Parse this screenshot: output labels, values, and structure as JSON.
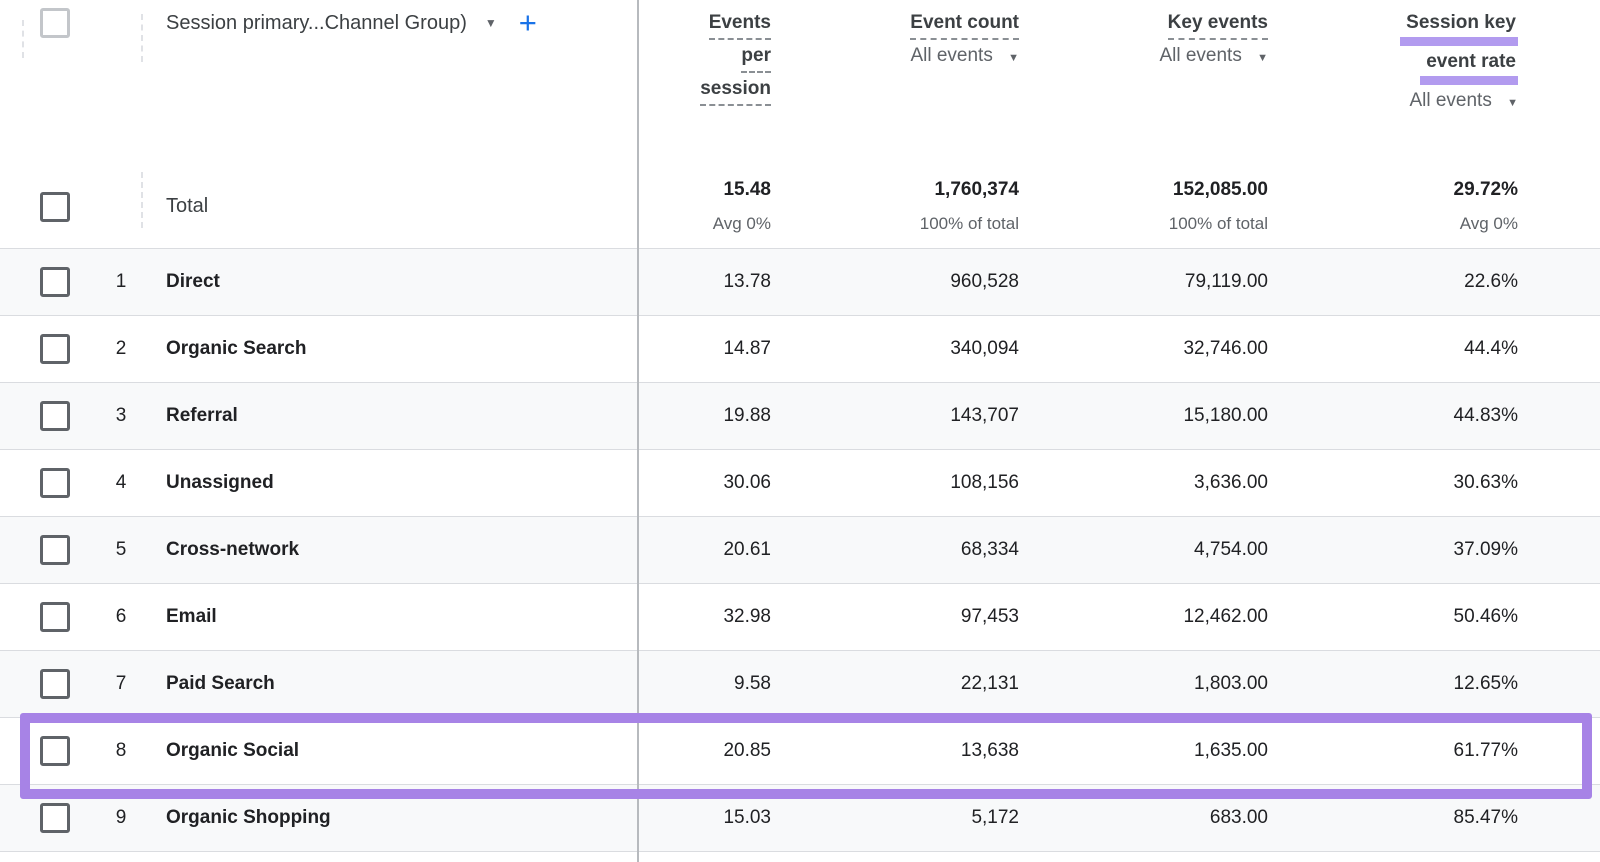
{
  "icons": {
    "dropdown_caret": "▼",
    "add": "+"
  },
  "colors": {
    "accent_blue": "#1a73e8",
    "highlight_purple": "#a783e6",
    "header_underline_purple": "#b29bef"
  },
  "table": {
    "dimension": {
      "label": "Session primary...Channel Group)"
    },
    "columns": [
      {
        "name": "Events per session",
        "lines": [
          "Events",
          "per",
          "session"
        ],
        "underline": "dashed",
        "filter": null
      },
      {
        "name": "Event count",
        "lines": [
          "Event count"
        ],
        "underline": "dashed",
        "filter": "All events"
      },
      {
        "name": "Key events",
        "lines": [
          "Key events"
        ],
        "underline": "dashed",
        "filter": "All events"
      },
      {
        "name": "Session key event rate",
        "lines": [
          "Session key",
          "event rate"
        ],
        "underline": "purple-highlight",
        "filter": "All events"
      }
    ],
    "total": {
      "label": "Total",
      "cells": [
        {
          "value": "15.48",
          "sub": "Avg 0%"
        },
        {
          "value": "1,760,374",
          "sub": "100% of total"
        },
        {
          "value": "152,085.00",
          "sub": "100% of total"
        },
        {
          "value": "29.72%",
          "sub": "Avg 0%"
        }
      ]
    },
    "rows": [
      {
        "num": "1",
        "channel": "Direct",
        "values": [
          "13.78",
          "960,528",
          "79,119.00",
          "22.6%"
        ]
      },
      {
        "num": "2",
        "channel": "Organic Search",
        "values": [
          "14.87",
          "340,094",
          "32,746.00",
          "44.4%"
        ]
      },
      {
        "num": "3",
        "channel": "Referral",
        "values": [
          "19.88",
          "143,707",
          "15,180.00",
          "44.83%"
        ]
      },
      {
        "num": "4",
        "channel": "Unassigned",
        "values": [
          "30.06",
          "108,156",
          "3,636.00",
          "30.63%"
        ]
      },
      {
        "num": "5",
        "channel": "Cross-network",
        "values": [
          "20.61",
          "68,334",
          "4,754.00",
          "37.09%"
        ]
      },
      {
        "num": "6",
        "channel": "Email",
        "values": [
          "32.98",
          "97,453",
          "12,462.00",
          "50.46%"
        ]
      },
      {
        "num": "7",
        "channel": "Paid Search",
        "values": [
          "9.58",
          "22,131",
          "1,803.00",
          "12.65%"
        ]
      },
      {
        "num": "8",
        "channel": "Organic Social",
        "values": [
          "20.85",
          "13,638",
          "1,635.00",
          "61.77%"
        ],
        "highlighted": true
      },
      {
        "num": "9",
        "channel": "Organic Shopping",
        "values": [
          "15.03",
          "5,172",
          "683.00",
          "85.47%"
        ]
      }
    ]
  }
}
